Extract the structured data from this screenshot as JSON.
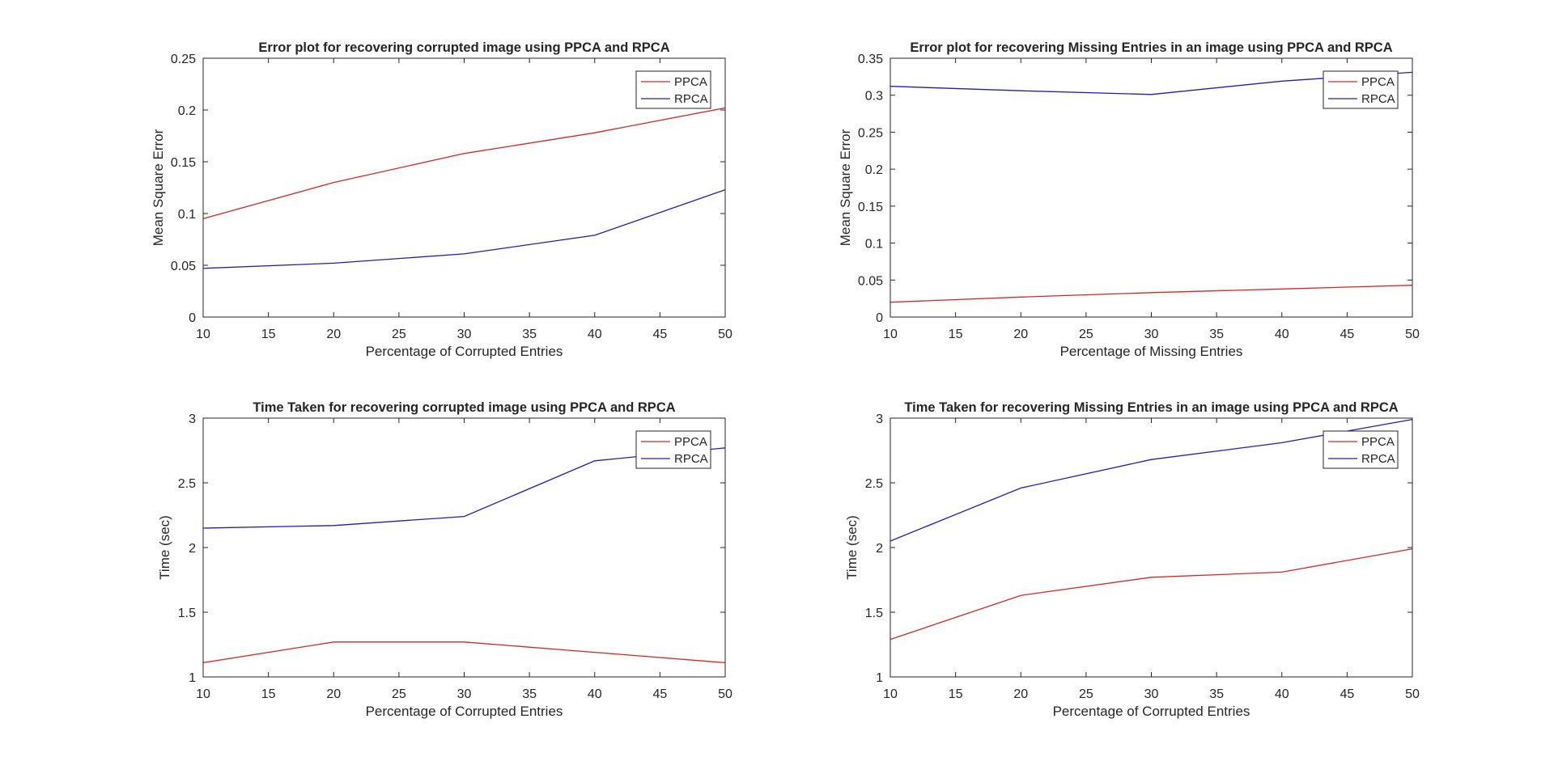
{
  "colors": {
    "PPCA": "#d62728",
    "RPCA": "#1f1fb4",
    "axis": "#262626",
    "background": "#ffffff"
  },
  "chart_data": [
    {
      "type": "line",
      "title": "Error plot for recovering corrupted image using PPCA and RPCA",
      "xlabel": "Percentage of Corrupted Entries",
      "ylabel": "Mean Square Error",
      "x": [
        10,
        20,
        30,
        40,
        50
      ],
      "xlim": [
        10,
        50
      ],
      "ylim": [
        0,
        0.25
      ],
      "xticks": [
        10,
        15,
        20,
        25,
        30,
        35,
        40,
        45,
        50
      ],
      "yticks": [
        0,
        0.05,
        0.1,
        0.15,
        0.2,
        0.25
      ],
      "ytick_labels": [
        "0",
        "0.05",
        "0.1",
        "0.15",
        "0.2",
        "0.25"
      ],
      "grid": false,
      "legend": "top-right",
      "series": [
        {
          "name": "PPCA",
          "values": [
            0.095,
            0.13,
            0.158,
            0.178,
            0.202
          ]
        },
        {
          "name": "RPCA",
          "values": [
            0.047,
            0.052,
            0.061,
            0.079,
            0.123
          ]
        }
      ]
    },
    {
      "type": "line",
      "title": "Error plot for recovering Missing Entries in an image using PPCA and RPCA",
      "xlabel": "Percentage of Missing Entries",
      "ylabel": "Mean Square Error",
      "x": [
        10,
        20,
        30,
        40,
        50
      ],
      "xlim": [
        10,
        50
      ],
      "ylim": [
        0,
        0.35
      ],
      "xticks": [
        10,
        15,
        20,
        25,
        30,
        35,
        40,
        45,
        50
      ],
      "yticks": [
        0,
        0.05,
        0.1,
        0.15,
        0.2,
        0.25,
        0.3,
        0.35
      ],
      "ytick_labels": [
        "0",
        "0.05",
        "0.1",
        "0.15",
        "0.2",
        "0.25",
        "0.3",
        "0.35"
      ],
      "grid": false,
      "legend": "top-right",
      "series": [
        {
          "name": "PPCA",
          "values": [
            0.02,
            0.027,
            0.033,
            0.038,
            0.043
          ]
        },
        {
          "name": "RPCA",
          "values": [
            0.312,
            0.306,
            0.301,
            0.319,
            0.331
          ]
        }
      ]
    },
    {
      "type": "line",
      "title": "Time Taken for recovering corrupted image using PPCA and RPCA",
      "xlabel": "Percentage of Corrupted Entries",
      "ylabel": "Time (sec)",
      "x": [
        10,
        20,
        30,
        40,
        50
      ],
      "xlim": [
        10,
        50
      ],
      "ylim": [
        1,
        3
      ],
      "xticks": [
        10,
        15,
        20,
        25,
        30,
        35,
        40,
        45,
        50
      ],
      "yticks": [
        1,
        1.5,
        2,
        2.5,
        3
      ],
      "ytick_labels": [
        "1",
        "1.5",
        "2",
        "2.5",
        "3"
      ],
      "grid": false,
      "legend": "top-right",
      "series": [
        {
          "name": "PPCA",
          "values": [
            1.11,
            1.27,
            1.27,
            1.19,
            1.11
          ]
        },
        {
          "name": "RPCA",
          "values": [
            2.15,
            2.17,
            2.24,
            2.67,
            2.77
          ]
        }
      ]
    },
    {
      "type": "line",
      "title": "Time Taken for recovering Missing Entries in an image using PPCA and RPCA",
      "xlabel": "Percentage of Corrupted Entries",
      "ylabel": "Time (sec)",
      "x": [
        10,
        20,
        30,
        40,
        50
      ],
      "xlim": [
        10,
        50
      ],
      "ylim": [
        1,
        3
      ],
      "xticks": [
        10,
        15,
        20,
        25,
        30,
        35,
        40,
        45,
        50
      ],
      "yticks": [
        1,
        1.5,
        2,
        2.5,
        3
      ],
      "ytick_labels": [
        "1",
        "1.5",
        "2",
        "2.5",
        "3"
      ],
      "grid": false,
      "legend": "top-right",
      "series": [
        {
          "name": "PPCA",
          "values": [
            1.29,
            1.63,
            1.77,
            1.81,
            1.99
          ]
        },
        {
          "name": "RPCA",
          "values": [
            2.05,
            2.46,
            2.68,
            2.81,
            2.99
          ]
        }
      ]
    }
  ]
}
